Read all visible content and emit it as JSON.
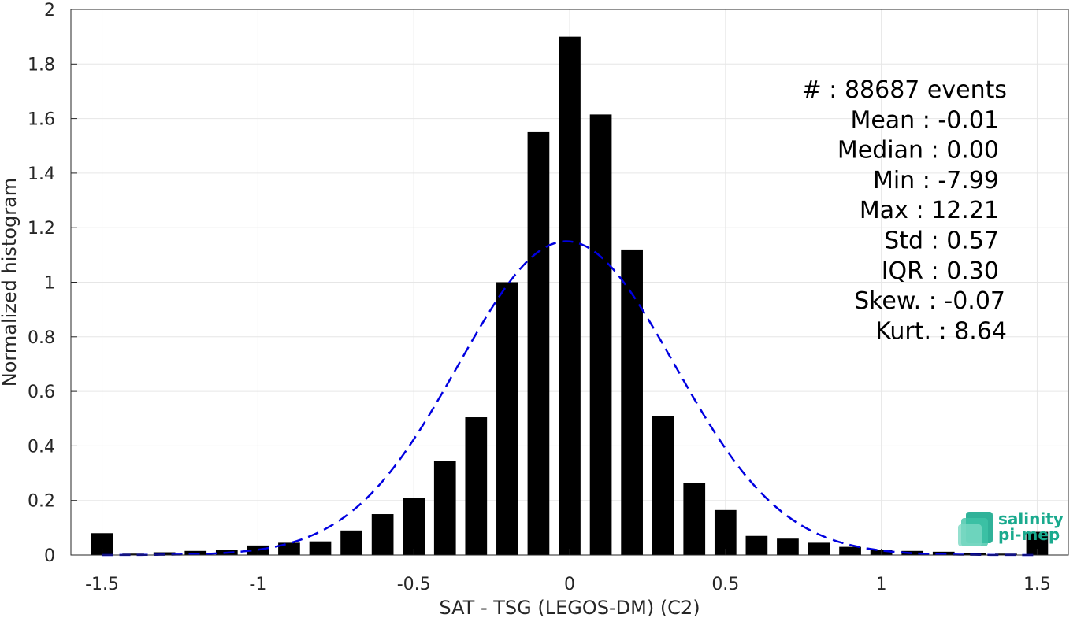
{
  "chart_data": {
    "type": "bar",
    "xlabel": "SAT - TSG (LEGOS-DM) (C2)",
    "ylabel": "Normalized histogram",
    "xlim": [
      -1.6,
      1.6
    ],
    "ylim": [
      0,
      2
    ],
    "grid": true,
    "x_ticks": [
      "-1.5",
      "-1",
      "-0.5",
      "0",
      "0.5",
      "1",
      "1.5"
    ],
    "y_ticks": [
      "0",
      "0.2",
      "0.4",
      "0.6",
      "0.8",
      "1",
      "1.2",
      "1.4",
      "1.6",
      "1.8",
      "2"
    ],
    "bar_width": 0.07,
    "bar_color": "#000000",
    "x": [
      -1.5,
      -1.4,
      -1.3,
      -1.2,
      -1.1,
      -1.0,
      -0.9,
      -0.8,
      -0.7,
      -0.6,
      -0.5,
      -0.4,
      -0.3,
      -0.2,
      -0.1,
      0.0,
      0.1,
      0.2,
      0.3,
      0.4,
      0.5,
      0.6,
      0.7,
      0.8,
      0.9,
      1.0,
      1.1,
      1.2,
      1.3,
      1.4,
      1.5
    ],
    "values": [
      0.08,
      0.005,
      0.01,
      0.015,
      0.02,
      0.035,
      0.045,
      0.05,
      0.09,
      0.15,
      0.21,
      0.345,
      0.505,
      1.0,
      1.55,
      1.9,
      1.615,
      1.12,
      0.51,
      0.265,
      0.165,
      0.07,
      0.06,
      0.045,
      0.03,
      0.02,
      0.015,
      0.012,
      0.008,
      0.005,
      0.085
    ],
    "fit_curve": {
      "style": "dashed",
      "color": "#0000e0",
      "mean": -0.01,
      "peak": 1.15
    },
    "stats": [
      "#  : 88687 events",
      "Mean : -0.01",
      "Median : 0.00",
      "Min : -7.99",
      "Max : 12.21",
      "Std : 0.57",
      "IQR : 0.30",
      "Skew. : -0.07",
      "Kurt. : 8.64"
    ]
  },
  "logo": {
    "line1": "salinity",
    "line2": "pi-mep"
  }
}
